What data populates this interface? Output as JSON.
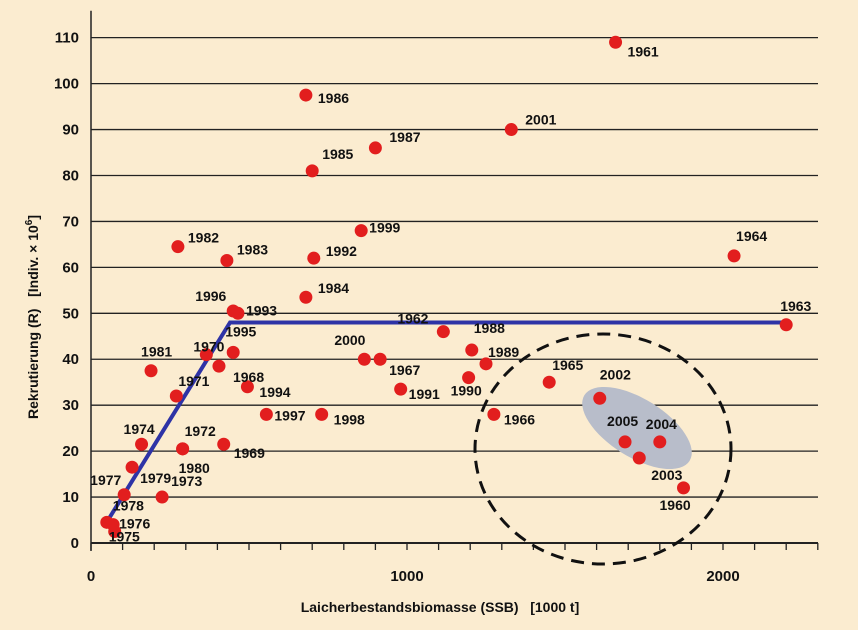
{
  "chart_data": {
    "type": "scatter",
    "xlabel": "Laicherbestandsbiomasse (SSB)   [1000 t]",
    "ylabel": "Rekrutierung (R)   [Indiv. × 10",
    "ylabel_exp": "6",
    "ylabel_close": "]",
    "xlim": [
      0,
      2300
    ],
    "ylim": [
      0,
      115
    ],
    "x_ticks": [
      0,
      1000,
      2000
    ],
    "y_ticks": [
      0,
      10,
      20,
      30,
      40,
      50,
      60,
      70,
      80,
      90,
      100,
      110
    ],
    "grid": "horizontal",
    "colors": {
      "points": "#e21e1e",
      "line": "#2e33a6",
      "ellipse": "#b7bcc8",
      "background": "#fbecd0"
    },
    "points": [
      {
        "label": "1960",
        "x": 1875,
        "y": 12
      },
      {
        "label": "1961",
        "x": 1660,
        "y": 109
      },
      {
        "label": "1962",
        "x": 1115,
        "y": 46
      },
      {
        "label": "1963",
        "x": 2200,
        "y": 47.5
      },
      {
        "label": "1964",
        "x": 2035,
        "y": 62.5
      },
      {
        "label": "1965",
        "x": 1450,
        "y": 35
      },
      {
        "label": "1966",
        "x": 1275,
        "y": 28
      },
      {
        "label": "1967",
        "x": 915,
        "y": 40
      },
      {
        "label": "1968",
        "x": 405,
        "y": 38.5
      },
      {
        "label": "1969",
        "x": 420,
        "y": 21.5
      },
      {
        "label": "1970",
        "x": 365,
        "y": 41
      },
      {
        "label": "1971",
        "x": 270,
        "y": 32
      },
      {
        "label": "1972",
        "x": 290,
        "y": 20.5
      },
      {
        "label": "1973",
        "x": 225,
        "y": 10
      },
      {
        "label": "1974",
        "x": 160,
        "y": 21.5
      },
      {
        "label": "1975",
        "x": 75,
        "y": 2.5
      },
      {
        "label": "1976",
        "x": 70,
        "y": 4
      },
      {
        "label": "1977",
        "x": 105,
        "y": 10.5
      },
      {
        "label": "1978",
        "x": 50,
        "y": 4.5
      },
      {
        "label": "1979",
        "x": 130,
        "y": 16.5
      },
      {
        "label": "1980",
        "x": 290,
        "y": 20.5
      },
      {
        "label": "1981",
        "x": 190,
        "y": 37.5
      },
      {
        "label": "1982",
        "x": 275,
        "y": 64.5
      },
      {
        "label": "1983",
        "x": 430,
        "y": 61.5
      },
      {
        "label": "1984",
        "x": 680,
        "y": 53.5
      },
      {
        "label": "1985",
        "x": 700,
        "y": 81
      },
      {
        "label": "1986",
        "x": 680,
        "y": 97.5
      },
      {
        "label": "1987",
        "x": 900,
        "y": 86
      },
      {
        "label": "1988",
        "x": 1205,
        "y": 42
      },
      {
        "label": "1989",
        "x": 1250,
        "y": 39
      },
      {
        "label": "1990",
        "x": 1195,
        "y": 36
      },
      {
        "label": "1991",
        "x": 980,
        "y": 33.5
      },
      {
        "label": "1992",
        "x": 705,
        "y": 62
      },
      {
        "label": "1993",
        "x": 465,
        "y": 50
      },
      {
        "label": "1994",
        "x": 495,
        "y": 34
      },
      {
        "label": "1995",
        "x": 450,
        "y": 41.5
      },
      {
        "label": "1996",
        "x": 450,
        "y": 50.5
      },
      {
        "label": "1997",
        "x": 555,
        "y": 28
      },
      {
        "label": "1998",
        "x": 730,
        "y": 28
      },
      {
        "label": "1999",
        "x": 855,
        "y": 68
      },
      {
        "label": "2000",
        "x": 865,
        "y": 40
      },
      {
        "label": "2001",
        "x": 1330,
        "y": 90
      },
      {
        "label": "2002",
        "x": 1610,
        "y": 31.5
      },
      {
        "label": "2003",
        "x": 1735,
        "y": 18.5
      },
      {
        "label": "2004",
        "x": 1800,
        "y": 22
      },
      {
        "label": "2005",
        "x": 1690,
        "y": 22
      }
    ],
    "hockey_stick": [
      {
        "x": 45,
        "y": 4
      },
      {
        "x": 440,
        "y": 48
      },
      {
        "x": 2215,
        "y": 48
      }
    ]
  }
}
